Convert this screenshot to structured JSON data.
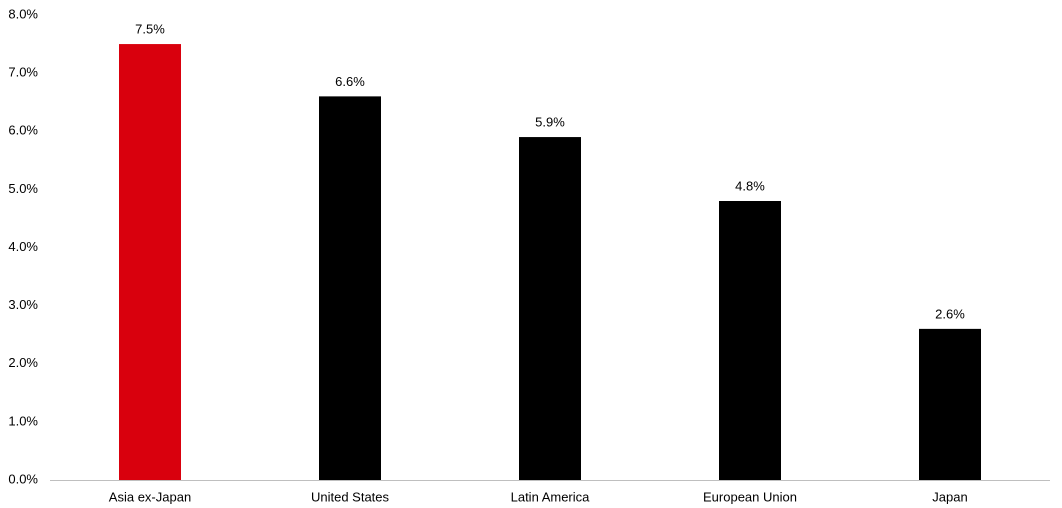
{
  "chart_data": {
    "type": "bar",
    "categories": [
      "Asia ex-Japan",
      "United States",
      "Latin America",
      "European Union",
      "Japan"
    ],
    "values": [
      7.5,
      6.6,
      5.9,
      4.8,
      2.6
    ],
    "value_labels": [
      "7.5%",
      "6.6%",
      "5.9%",
      "4.8%",
      "2.6%"
    ],
    "colors": [
      "#d9000d",
      "#000000",
      "#000000",
      "#000000",
      "#000000"
    ],
    "ylim": [
      0,
      8
    ],
    "yticks": [
      {
        "value": 0,
        "label": "0.0%"
      },
      {
        "value": 1,
        "label": "1.0%"
      },
      {
        "value": 2,
        "label": "2.0%"
      },
      {
        "value": 3,
        "label": "3.0%"
      },
      {
        "value": 4,
        "label": "4.0%"
      },
      {
        "value": 5,
        "label": "5.0%"
      },
      {
        "value": 6,
        "label": "6.0%"
      },
      {
        "value": 7,
        "label": "7.0%"
      },
      {
        "value": 8,
        "label": "8.0%"
      }
    ],
    "grid": false
  }
}
